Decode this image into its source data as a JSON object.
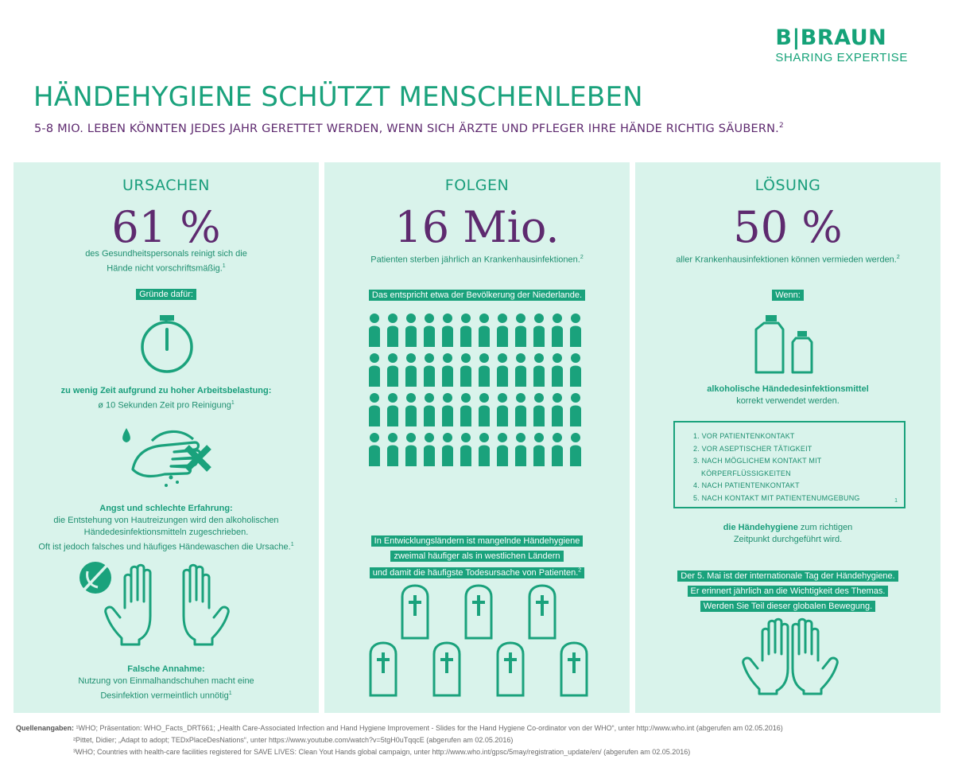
{
  "logo": {
    "brand": "B|BRAUN",
    "tagline": "SHARING EXPERTISE"
  },
  "title": "HÄNDEHYGIENE SCHÜTZT MENSCHENLEBEN",
  "subtitle": "5-8 MIO. LEBEN KÖNNTEN JEDES JAHR GERETTET WERDEN, WENN SICH ÄRZTE UND PFLEGER IHRE HÄNDE RICHTIG SÄUBERN.",
  "subtitle_ref": "2",
  "colors": {
    "green": "#1aa27c",
    "purple": "#5e2a6f",
    "panel": "#d9f3eb"
  },
  "ursachen": {
    "heading": "URSACHEN",
    "stat": "61 %",
    "stat_desc_1": "des Gesundheitspersonals reinigt sich die",
    "stat_desc_2": "Hände nicht vorschriftsmäßig.",
    "stat_ref": "1",
    "reasons_label": "Gründe dafür:",
    "reason1_title": "zu wenig Zeit aufgrund zu hoher Arbeitsbelastung:",
    "reason1_text": "ø 10 Sekunden Zeit pro Reinigung",
    "reason1_ref": "1",
    "reason2_title": "Angst und schlechte Erfahrung:",
    "reason2_line1": "die Entstehung von Hautreizungen wird den alkoholischen",
    "reason2_line2": "Händedesinfektionsmitteln zugeschrieben.",
    "reason2_line3": "Oft ist jedoch falsches und häufiges Händewaschen die Ursache.",
    "reason2_ref": "1",
    "reason3_title": "Falsche Annahme:",
    "reason3_line1": "Nutzung von Einmalhandschuhen macht eine",
    "reason3_line2": "Desinfektion vermeintlich unnötig",
    "reason3_ref": "1",
    "icons": [
      "stopwatch-icon",
      "washing-hands-icon",
      "no-gloves-icon"
    ]
  },
  "folgen": {
    "heading": "FOLGEN",
    "stat": "16 Mio.",
    "stat_desc": "Patienten sterben jährlich an Krankenhausinfektionen.",
    "stat_ref": "2",
    "compare_label": "Das entspricht etwa der Bevölkerung der Niederlande.",
    "people_rows": 4,
    "people_per_row": 12,
    "dev_line1": "In Entwicklungsländern ist mangelnde Händehygiene",
    "dev_line2": "zweimal häufiger als in westlichen Ländern",
    "dev_line3": "und damit die häufigste Todesursache von Patienten.",
    "dev_ref": "2",
    "icons": [
      "people-icon",
      "gravestone-icon"
    ]
  },
  "loesung": {
    "heading": "LÖSUNG",
    "stat": "50 %",
    "stat_desc": "aller Krankenhausinfektionen können vermieden werden.",
    "stat_ref": "2",
    "if_label": "Wenn:",
    "disinfectant_title": "alkoholische Händedesinfektionsmittel",
    "disinfectant_text": "korrekt verwendet werden.",
    "moments": [
      "1. VOR PATIENTENKONTAKT",
      "2. VOR ASEPTISCHER TÄTIGKEIT",
      "3. NACH MÖGLICHEM KONTAKT MIT",
      "KÖRPERFLÜSSIGKEITEN",
      "4. NACH PATIENTENKONTAKT",
      "5. NACH KONTAKT MIT PATIENTENUMGEBUNG"
    ],
    "moments_ref": "1",
    "hygiene_bold": "die Händehygiene",
    "hygiene_rest": " zum richtigen",
    "hygiene_line2": "Zeitpunkt durchgeführt wird.",
    "day_line1": "Der 5. Mai ist der internationale Tag der Händehygiene.",
    "day_line2": "Er erinnert jährlich an die Wichtigkeit des Themas.",
    "day_line3": "Werden Sie Teil dieser globalen Bewegung.",
    "icons": [
      "disinfectant-bottles-icon",
      "hands-icon"
    ]
  },
  "sources": {
    "label": "Quellenangaben:",
    "s1": "¹WHO; Präsentation: WHO_Facts_DRT661; „Health Care-Associated Infection and Hand Hygiene Improvement - Slides for the Hand Hygiene Co-ordinator von der WHO“, unter http://www.who.int (abgerufen am 02.05.2016)",
    "s2": "²Pittet, Didier; „Adapt to adopt; TEDxPlaceDesNations“, unter https://www.youtube.com/watch?v=5tgH0uTqqcE (abgerufen am 02.05.2016)",
    "s3": "³WHO; Countries with health-care facilities registered for SAVE LIVES: Clean Yout Hands global campaign, unter http://www.who.int/gpsc/5may/registration_update/en/ (abgerufen am 02.05.2016)"
  }
}
